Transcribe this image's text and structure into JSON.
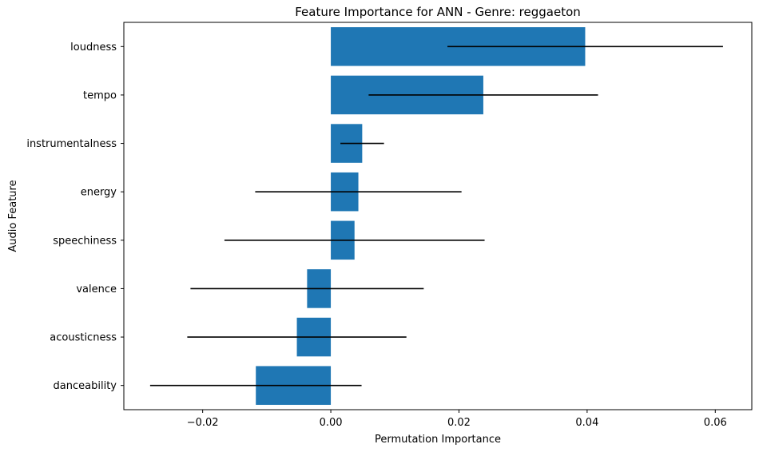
{
  "chart_data": {
    "type": "bar",
    "orientation": "horizontal",
    "title": "Feature Importance for ANN - Genre: reggaeton",
    "xlabel": "Permutation Importance",
    "ylabel": "Audio Feature",
    "categories": [
      "loudness",
      "tempo",
      "instrumentalness",
      "energy",
      "speechiness",
      "valence",
      "acousticness",
      "danceability"
    ],
    "values": [
      0.0397,
      0.0238,
      0.0049,
      0.0043,
      0.0037,
      -0.0037,
      -0.0053,
      -0.0117
    ],
    "errors": [
      0.0215,
      0.0179,
      0.0034,
      0.0161,
      0.0203,
      0.0182,
      0.0171,
      0.0165
    ],
    "xlim": [
      -0.0323,
      0.0657
    ],
    "xticks": [
      -0.02,
      0.0,
      0.02,
      0.04,
      0.06
    ],
    "xtick_labels": [
      "−0.02",
      "0.00",
      "0.02",
      "0.04",
      "0.06"
    ],
    "bar_color": "#1f77b4",
    "error_color": "#000000",
    "grid": false
  }
}
